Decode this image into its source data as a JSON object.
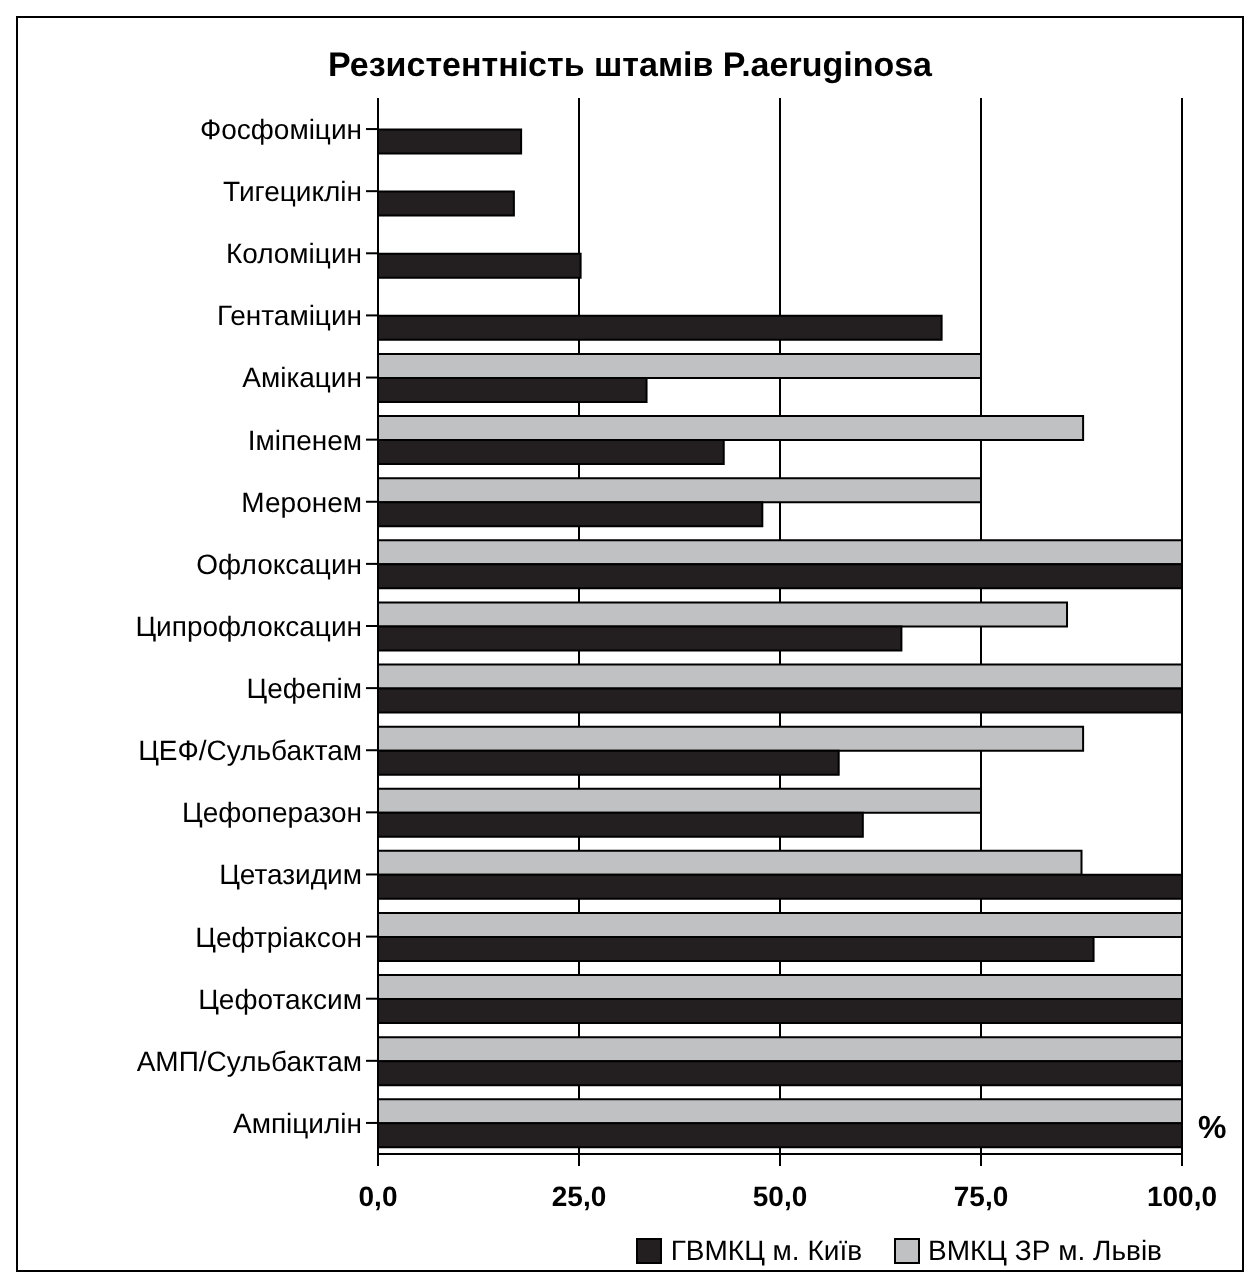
{
  "chart_data": {
    "type": "bar",
    "orientation": "horizontal",
    "title": "Резистентність штамів P.aeruginosa",
    "xlabel": "%",
    "categories": [
      "Фосфоміцин",
      "Тигециклін",
      "Коломіцин",
      "Гентаміцин",
      "Амікацин",
      "Іміпенем",
      "Меронем",
      "Офлоксацин",
      "Ципрофлоксацин",
      "Цефепім",
      "ЦЕФ/Сульбактам",
      "Цефоперазон",
      "Цетазидим",
      "Цефтріаксон",
      "Цефотаксим",
      "АМП/Сульбактам",
      "Ампіцилін"
    ],
    "series": [
      {
        "name": "ГВМКЦ м. Київ",
        "color": "#231f20",
        "values": [
          17.8,
          16.9,
          25.2,
          70.1,
          33.4,
          43.0,
          47.8,
          100,
          65.1,
          100,
          57.3,
          60.3,
          100,
          89.0,
          100,
          100,
          100
        ]
      },
      {
        "name": "ВМКЦ ЗР м. Львів",
        "color": "#c0c1c3",
        "values": [
          null,
          null,
          null,
          null,
          75,
          87.7,
          75,
          100,
          85.7,
          100,
          87.7,
          75,
          87.5,
          100,
          100,
          100,
          100
        ]
      }
    ],
    "xlim": [
      0,
      100
    ],
    "xticks": [
      {
        "value": 0,
        "label": "0,0"
      },
      {
        "value": 25,
        "label": "25,0"
      },
      {
        "value": 50,
        "label": "50,0"
      },
      {
        "value": 75,
        "label": "75,0"
      },
      {
        "value": 100,
        "label": "100,0"
      }
    ],
    "grid": "x",
    "legend": "bottom"
  }
}
